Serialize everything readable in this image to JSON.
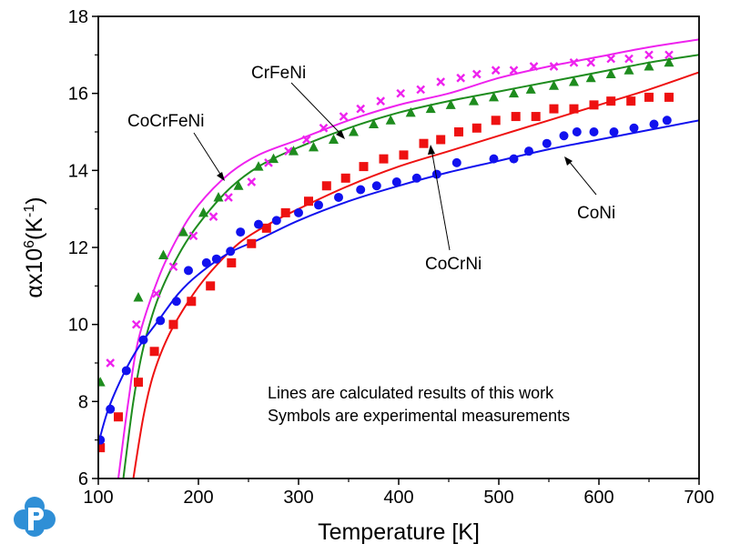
{
  "chart_data": {
    "type": "scatter",
    "title": "",
    "xlabel": "Temperature [K]",
    "ylabel_parts": {
      "base": "αx10",
      "exp": "6",
      "open": "(K",
      "unit_exp": "-1",
      "close": ")"
    },
    "xlim": [
      100,
      700
    ],
    "ylim": [
      6,
      18
    ],
    "xticks": [
      100,
      200,
      300,
      400,
      500,
      600,
      700
    ],
    "yticks": [
      6,
      8,
      10,
      12,
      14,
      16,
      18
    ],
    "grid": false,
    "note_lines": [
      "Lines are calculated results of this work",
      "Symbols are experimental measurements"
    ],
    "annotations": [
      {
        "text": "CrFeNi",
        "target": [
          345,
          14.9
        ]
      },
      {
        "text": "CoCrFeNi",
        "target": [
          240,
          13.8
        ]
      },
      {
        "text": "CoCrNi",
        "target": [
          430,
          14.2
        ]
      },
      {
        "text": "CoNi",
        "target": [
          600,
          14.6
        ]
      }
    ],
    "series": [
      {
        "name": "CoCrFeNi",
        "color": "#ee22ee",
        "marker": "x",
        "points": [
          [
            112,
            9.0
          ],
          [
            138,
            10.0
          ],
          [
            158,
            10.8
          ],
          [
            175,
            11.5
          ],
          [
            195,
            12.3
          ],
          [
            215,
            12.8
          ],
          [
            230,
            13.3
          ],
          [
            253,
            13.7
          ],
          [
            270,
            14.2
          ],
          [
            290,
            14.5
          ],
          [
            308,
            14.8
          ],
          [
            325,
            15.1
          ],
          [
            345,
            15.4
          ],
          [
            362,
            15.6
          ],
          [
            382,
            15.8
          ],
          [
            402,
            16.0
          ],
          [
            422,
            16.1
          ],
          [
            442,
            16.3
          ],
          [
            462,
            16.4
          ],
          [
            478,
            16.5
          ],
          [
            497,
            16.6
          ],
          [
            515,
            16.6
          ],
          [
            535,
            16.7
          ],
          [
            555,
            16.7
          ],
          [
            575,
            16.8
          ],
          [
            592,
            16.8
          ],
          [
            612,
            16.9
          ],
          [
            630,
            16.9
          ],
          [
            650,
            17.0
          ],
          [
            670,
            17.0
          ]
        ],
        "curve": [
          [
            120,
            6.0
          ],
          [
            130,
            8.0
          ],
          [
            140,
            9.6
          ],
          [
            160,
            11.2
          ],
          [
            180,
            12.3
          ],
          [
            200,
            13.1
          ],
          [
            230,
            13.9
          ],
          [
            260,
            14.4
          ],
          [
            300,
            14.8
          ],
          [
            350,
            15.3
          ],
          [
            400,
            15.7
          ],
          [
            450,
            16.0
          ],
          [
            500,
            16.4
          ],
          [
            550,
            16.7
          ],
          [
            600,
            16.95
          ],
          [
            650,
            17.2
          ],
          [
            700,
            17.4
          ]
        ]
      },
      {
        "name": "CrFeNi",
        "color": "#1e8c1e",
        "marker": "triangle",
        "points": [
          [
            102,
            8.5
          ],
          [
            140,
            10.7
          ],
          [
            165,
            11.8
          ],
          [
            185,
            12.4
          ],
          [
            205,
            12.9
          ],
          [
            220,
            13.3
          ],
          [
            240,
            13.6
          ],
          [
            260,
            14.1
          ],
          [
            275,
            14.3
          ],
          [
            295,
            14.5
          ],
          [
            315,
            14.6
          ],
          [
            335,
            14.8
          ],
          [
            355,
            15.0
          ],
          [
            375,
            15.2
          ],
          [
            392,
            15.3
          ],
          [
            412,
            15.5
          ],
          [
            432,
            15.6
          ],
          [
            452,
            15.7
          ],
          [
            475,
            15.8
          ],
          [
            495,
            15.9
          ],
          [
            515,
            16.0
          ],
          [
            532,
            16.1
          ],
          [
            555,
            16.2
          ],
          [
            575,
            16.3
          ],
          [
            592,
            16.4
          ],
          [
            612,
            16.5
          ],
          [
            630,
            16.6
          ],
          [
            650,
            16.7
          ],
          [
            670,
            16.8
          ]
        ],
        "curve": [
          [
            125,
            6.0
          ],
          [
            135,
            8.0
          ],
          [
            145,
            9.4
          ],
          [
            160,
            10.7
          ],
          [
            180,
            11.8
          ],
          [
            200,
            12.6
          ],
          [
            230,
            13.5
          ],
          [
            260,
            14.1
          ],
          [
            300,
            14.6
          ],
          [
            350,
            15.1
          ],
          [
            400,
            15.5
          ],
          [
            450,
            15.8
          ],
          [
            500,
            16.05
          ],
          [
            550,
            16.3
          ],
          [
            600,
            16.55
          ],
          [
            650,
            16.8
          ],
          [
            700,
            17.0
          ]
        ]
      },
      {
        "name": "CoCrNi",
        "color": "#ee1111",
        "marker": "square",
        "points": [
          [
            102,
            6.8
          ],
          [
            120,
            7.6
          ],
          [
            140,
            8.5
          ],
          [
            156,
            9.3
          ],
          [
            175,
            10.0
          ],
          [
            193,
            10.6
          ],
          [
            212,
            11.0
          ],
          [
            233,
            11.6
          ],
          [
            253,
            12.1
          ],
          [
            268,
            12.5
          ],
          [
            287,
            12.9
          ],
          [
            310,
            13.2
          ],
          [
            328,
            13.6
          ],
          [
            347,
            13.8
          ],
          [
            365,
            14.1
          ],
          [
            385,
            14.3
          ],
          [
            405,
            14.4
          ],
          [
            425,
            14.7
          ],
          [
            442,
            14.8
          ],
          [
            460,
            15.0
          ],
          [
            478,
            15.1
          ],
          [
            497,
            15.3
          ],
          [
            517,
            15.4
          ],
          [
            537,
            15.4
          ],
          [
            555,
            15.6
          ],
          [
            575,
            15.6
          ],
          [
            595,
            15.7
          ],
          [
            612,
            15.8
          ],
          [
            632,
            15.8
          ],
          [
            650,
            15.9
          ],
          [
            670,
            15.9
          ]
        ],
        "curve": [
          [
            135,
            6.0
          ],
          [
            145,
            7.6
          ],
          [
            155,
            8.7
          ],
          [
            170,
            9.7
          ],
          [
            190,
            10.6
          ],
          [
            210,
            11.3
          ],
          [
            240,
            12.1
          ],
          [
            270,
            12.6
          ],
          [
            300,
            13.0
          ],
          [
            350,
            13.6
          ],
          [
            400,
            14.1
          ],
          [
            450,
            14.5
          ],
          [
            500,
            14.9
          ],
          [
            550,
            15.3
          ],
          [
            600,
            15.7
          ],
          [
            650,
            16.1
          ],
          [
            700,
            16.55
          ]
        ]
      },
      {
        "name": "CoNi",
        "color": "#1111ee",
        "marker": "circle",
        "points": [
          [
            102,
            7.0
          ],
          [
            112,
            7.8
          ],
          [
            128,
            8.8
          ],
          [
            145,
            9.6
          ],
          [
            162,
            10.1
          ],
          [
            178,
            10.6
          ],
          [
            190,
            11.4
          ],
          [
            208,
            11.6
          ],
          [
            218,
            11.7
          ],
          [
            232,
            11.9
          ],
          [
            242,
            12.4
          ],
          [
            260,
            12.6
          ],
          [
            278,
            12.7
          ],
          [
            300,
            12.9
          ],
          [
            320,
            13.1
          ],
          [
            340,
            13.3
          ],
          [
            362,
            13.5
          ],
          [
            378,
            13.6
          ],
          [
            398,
            13.7
          ],
          [
            418,
            13.8
          ],
          [
            438,
            13.9
          ],
          [
            458,
            14.2
          ],
          [
            495,
            14.3
          ],
          [
            515,
            14.3
          ],
          [
            530,
            14.5
          ],
          [
            548,
            14.7
          ],
          [
            565,
            14.9
          ],
          [
            578,
            15.0
          ],
          [
            595,
            15.0
          ],
          [
            615,
            15.0
          ],
          [
            635,
            15.1
          ],
          [
            655,
            15.2
          ],
          [
            668,
            15.3
          ]
        ],
        "curve": [
          [
            100,
            6.9
          ],
          [
            110,
            7.8
          ],
          [
            125,
            8.7
          ],
          [
            140,
            9.4
          ],
          [
            160,
            10.1
          ],
          [
            180,
            10.8
          ],
          [
            200,
            11.3
          ],
          [
            230,
            11.85
          ],
          [
            260,
            12.2
          ],
          [
            300,
            12.7
          ],
          [
            350,
            13.2
          ],
          [
            400,
            13.6
          ],
          [
            450,
            13.95
          ],
          [
            500,
            14.25
          ],
          [
            550,
            14.55
          ],
          [
            600,
            14.8
          ],
          [
            650,
            15.05
          ],
          [
            700,
            15.3
          ]
        ]
      }
    ]
  }
}
